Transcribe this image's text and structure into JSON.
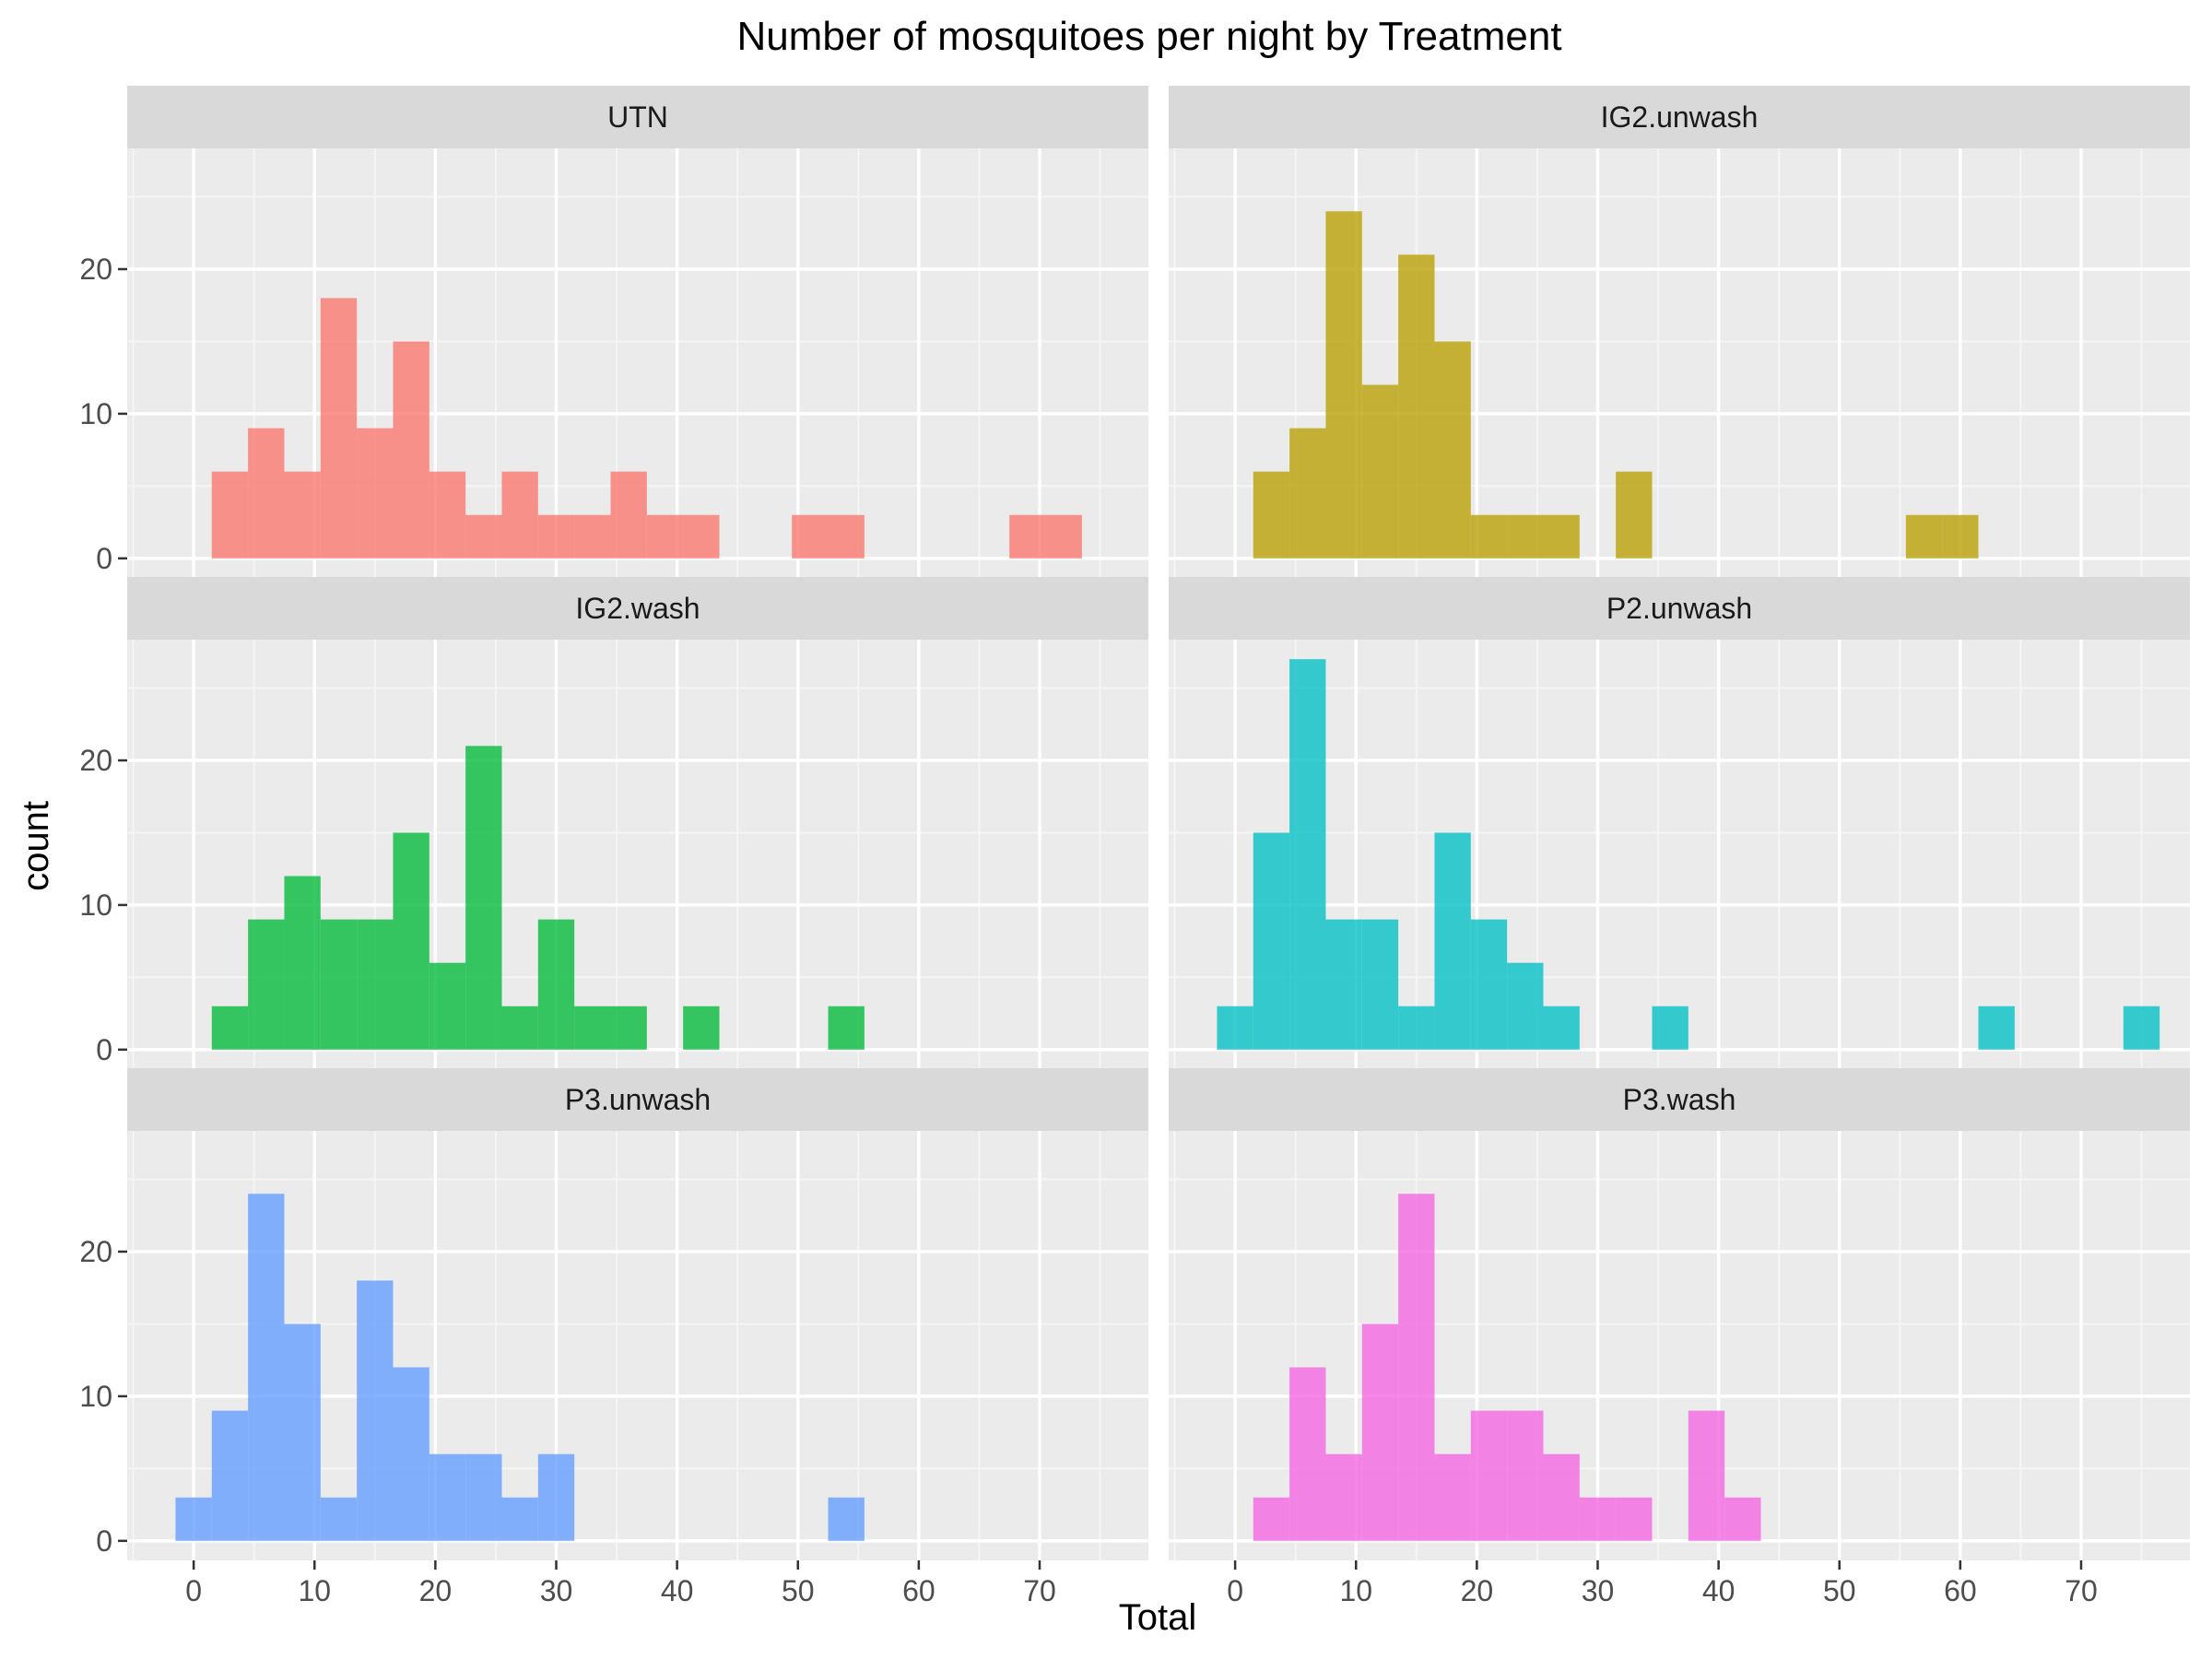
{
  "chart_data": {
    "type": "bar",
    "title": "Number of mosquitoes per night by Treatment",
    "xlabel": "Total",
    "ylabel": "count",
    "xlim": [
      -5.5,
      79
    ],
    "ylim": [
      -1.35,
      28.35
    ],
    "x_ticks": [
      "0",
      "10",
      "20",
      "30",
      "40",
      "50",
      "60",
      "70"
    ],
    "y_ticks": [
      "0",
      "10",
      "20"
    ],
    "bin_width": 3,
    "grid": true,
    "legend": "none",
    "panels": [
      {
        "name": "UTN",
        "color": "#F8766D",
        "bins": [
          {
            "x": 3,
            "count": 6
          },
          {
            "x": 6,
            "count": 9
          },
          {
            "x": 9,
            "count": 6
          },
          {
            "x": 12,
            "count": 18
          },
          {
            "x": 15,
            "count": 9
          },
          {
            "x": 18,
            "count": 15
          },
          {
            "x": 21,
            "count": 6
          },
          {
            "x": 24,
            "count": 3
          },
          {
            "x": 27,
            "count": 6
          },
          {
            "x": 30,
            "count": 3
          },
          {
            "x": 33,
            "count": 3
          },
          {
            "x": 36,
            "count": 6
          },
          {
            "x": 39,
            "count": 3
          },
          {
            "x": 42,
            "count": 3
          },
          {
            "x": 51,
            "count": 3
          },
          {
            "x": 54,
            "count": 3
          },
          {
            "x": 69,
            "count": 3
          },
          {
            "x": 72,
            "count": 3
          }
        ]
      },
      {
        "name": "IG2.unwash",
        "color": "#B79F00",
        "bins": [
          {
            "x": 3,
            "count": 6
          },
          {
            "x": 6,
            "count": 9
          },
          {
            "x": 9,
            "count": 24
          },
          {
            "x": 12,
            "count": 12
          },
          {
            "x": 15,
            "count": 21
          },
          {
            "x": 18,
            "count": 15
          },
          {
            "x": 21,
            "count": 3
          },
          {
            "x": 24,
            "count": 3
          },
          {
            "x": 27,
            "count": 3
          },
          {
            "x": 33,
            "count": 6
          },
          {
            "x": 57,
            "count": 3
          },
          {
            "x": 60,
            "count": 3
          }
        ]
      },
      {
        "name": "IG2.wash",
        "color": "#00BA38",
        "bins": [
          {
            "x": 3,
            "count": 3
          },
          {
            "x": 6,
            "count": 9
          },
          {
            "x": 9,
            "count": 12
          },
          {
            "x": 12,
            "count": 9
          },
          {
            "x": 15,
            "count": 9
          },
          {
            "x": 18,
            "count": 15
          },
          {
            "x": 21,
            "count": 6
          },
          {
            "x": 24,
            "count": 21
          },
          {
            "x": 27,
            "count": 3
          },
          {
            "x": 30,
            "count": 9
          },
          {
            "x": 33,
            "count": 3
          },
          {
            "x": 36,
            "count": 3
          },
          {
            "x": 42,
            "count": 3
          },
          {
            "x": 54,
            "count": 3
          }
        ]
      },
      {
        "name": "P2.unwash",
        "color": "#00BFC4",
        "bins": [
          {
            "x": 0,
            "count": 3
          },
          {
            "x": 3,
            "count": 15
          },
          {
            "x": 6,
            "count": 27
          },
          {
            "x": 9,
            "count": 9
          },
          {
            "x": 12,
            "count": 9
          },
          {
            "x": 15,
            "count": 3
          },
          {
            "x": 18,
            "count": 15
          },
          {
            "x": 21,
            "count": 9
          },
          {
            "x": 24,
            "count": 6
          },
          {
            "x": 27,
            "count": 3
          },
          {
            "x": 36,
            "count": 3
          },
          {
            "x": 63,
            "count": 3
          },
          {
            "x": 75,
            "count": 3
          }
        ]
      },
      {
        "name": "P3.unwash",
        "color": "#619CFF",
        "bins": [
          {
            "x": 0,
            "count": 3
          },
          {
            "x": 3,
            "count": 9
          },
          {
            "x": 6,
            "count": 24
          },
          {
            "x": 9,
            "count": 15
          },
          {
            "x": 12,
            "count": 3
          },
          {
            "x": 15,
            "count": 18
          },
          {
            "x": 18,
            "count": 12
          },
          {
            "x": 21,
            "count": 6
          },
          {
            "x": 24,
            "count": 6
          },
          {
            "x": 27,
            "count": 3
          },
          {
            "x": 30,
            "count": 6
          },
          {
            "x": 54,
            "count": 3
          }
        ]
      },
      {
        "name": "P3.wash",
        "color": "#F564E3",
        "bins": [
          {
            "x": 3,
            "count": 3
          },
          {
            "x": 6,
            "count": 12
          },
          {
            "x": 9,
            "count": 6
          },
          {
            "x": 12,
            "count": 15
          },
          {
            "x": 15,
            "count": 24
          },
          {
            "x": 18,
            "count": 6
          },
          {
            "x": 21,
            "count": 9
          },
          {
            "x": 24,
            "count": 9
          },
          {
            "x": 27,
            "count": 6
          },
          {
            "x": 30,
            "count": 3
          },
          {
            "x": 33,
            "count": 3
          },
          {
            "x": 39,
            "count": 9
          },
          {
            "x": 42,
            "count": 3
          }
        ]
      }
    ]
  }
}
